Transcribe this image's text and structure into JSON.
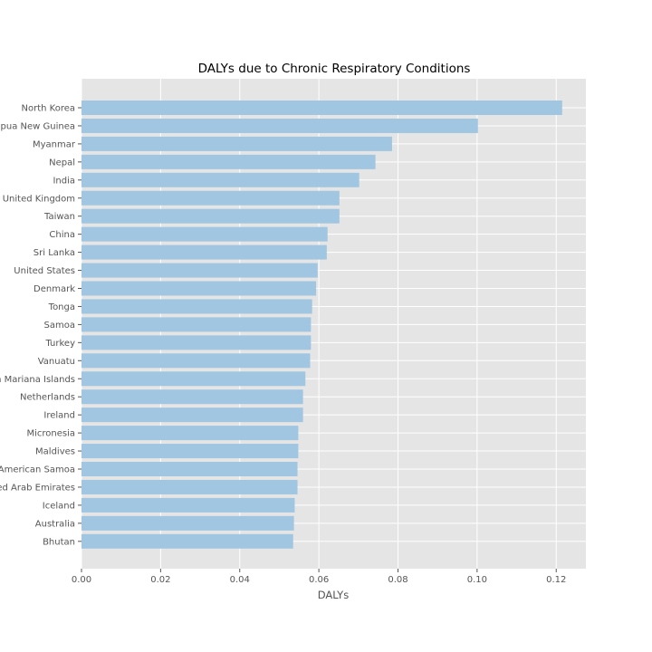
{
  "chart_data": {
    "type": "bar",
    "orientation": "horizontal",
    "title": "DALYs due to Chronic Respiratory Conditions",
    "xlabel": "DALYs",
    "ylabel": "",
    "xlim": [
      0,
      0.1275
    ],
    "xticks": [
      0.0,
      0.02,
      0.04,
      0.06,
      0.08,
      0.1,
      0.12
    ],
    "xtick_labels": [
      "0.00",
      "0.02",
      "0.04",
      "0.06",
      "0.08",
      "0.10",
      "0.12"
    ],
    "grid": true,
    "style": "ggplot",
    "bar_color": "#a1c6e2",
    "background_color": "#e5e5e5",
    "grid_color": "#ffffff",
    "categories": [
      "North Korea",
      "Papua New Guinea",
      "Myanmar",
      "Nepal",
      "India",
      "United Kingdom",
      "Taiwan",
      "China",
      "Sri Lanka",
      "United States",
      "Denmark",
      "Tonga",
      "Samoa",
      "Turkey",
      "Vanuatu",
      "Northern Mariana Islands",
      "Netherlands",
      "Ireland",
      "Micronesia",
      "Maldives",
      "American Samoa",
      "United Arab Emirates",
      "Iceland",
      "Australia",
      "Bhutan"
    ],
    "values": [
      0.1215,
      0.1002,
      0.0785,
      0.0743,
      0.0702,
      0.0652,
      0.0652,
      0.0622,
      0.062,
      0.0597,
      0.0593,
      0.0583,
      0.058,
      0.058,
      0.0578,
      0.0566,
      0.056,
      0.056,
      0.0548,
      0.0548,
      0.0546,
      0.0546,
      0.0539,
      0.0537,
      0.0535
    ]
  }
}
